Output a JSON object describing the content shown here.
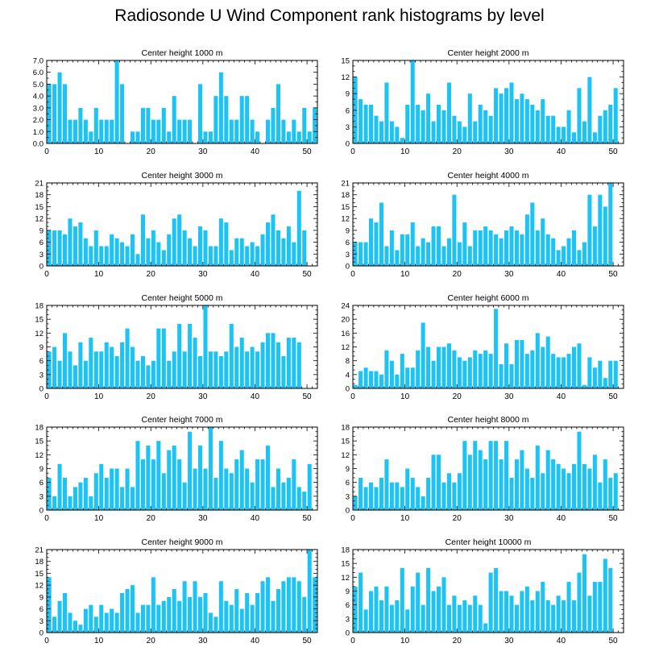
{
  "title": "Radiosonde U Wind Component rank histograms by level",
  "colors": {
    "bar": "#1cc3f5",
    "axis": "#000000"
  },
  "chart_data": [
    {
      "type": "bar",
      "title": "Center height 1000 m",
      "xlabel": "",
      "ylabel": "",
      "xlim": [
        0,
        52
      ],
      "ylim": [
        0,
        7
      ],
      "xticks": [
        0,
        10,
        20,
        30,
        40,
        50
      ],
      "yticks": [
        0,
        1,
        2,
        3,
        4,
        5,
        6,
        7
      ],
      "ytick_labels": [
        "0.0",
        "1.0",
        "2.0",
        "3.0",
        "4.0",
        "5.0",
        "6.0",
        "7.0"
      ],
      "values": [
        5,
        5,
        6,
        5,
        2,
        2,
        3,
        2,
        1,
        3,
        2,
        2,
        2,
        7,
        5,
        0,
        1,
        1,
        3,
        3,
        2,
        2,
        3,
        1,
        4,
        2,
        2,
        2,
        0,
        5,
        1,
        1,
        4,
        6,
        4,
        2,
        2,
        4,
        4,
        2,
        1,
        0,
        2,
        3,
        5,
        2,
        1,
        2,
        1,
        3,
        1,
        3
      ]
    },
    {
      "type": "bar",
      "title": "Center height 2000 m",
      "xlabel": "",
      "ylabel": "",
      "xlim": [
        0,
        52
      ],
      "ylim": [
        0,
        15
      ],
      "xticks": [
        0,
        10,
        20,
        30,
        40,
        50
      ],
      "yticks": [
        0,
        3,
        6,
        9,
        12,
        15
      ],
      "ytick_labels": [
        "0",
        "3",
        "6",
        "9",
        "12",
        "15"
      ],
      "values": [
        12,
        8,
        7,
        7,
        5,
        4,
        11,
        4,
        3,
        1,
        7,
        15,
        7,
        6,
        9,
        4,
        7,
        6,
        11,
        5,
        4,
        3,
        9,
        4,
        7,
        6,
        5,
        10,
        9,
        10,
        11,
        8,
        9,
        8,
        7,
        6,
        8,
        5,
        5,
        3,
        3,
        6,
        2,
        10,
        4,
        12,
        2,
        5,
        6,
        7,
        10,
        0
      ]
    },
    {
      "type": "bar",
      "title": "Center height 3000 m",
      "xlabel": "",
      "ylabel": "",
      "xlim": [
        0,
        52
      ],
      "ylim": [
        0,
        21
      ],
      "xticks": [
        0,
        10,
        20,
        30,
        40,
        50
      ],
      "yticks": [
        0,
        3,
        6,
        9,
        12,
        15,
        18,
        21
      ],
      "ytick_labels": [
        "0",
        "3",
        "6",
        "9",
        "12",
        "15",
        "18",
        "21"
      ],
      "values": [
        9,
        9,
        9,
        8,
        12,
        10,
        11,
        7,
        5,
        9,
        5,
        5,
        8,
        7,
        6,
        5,
        8,
        3,
        13,
        7,
        9,
        6,
        4,
        8,
        12,
        13,
        9,
        7,
        5,
        10,
        9,
        5,
        5,
        12,
        11,
        4,
        7,
        7,
        5,
        6,
        5,
        8,
        11,
        13,
        9,
        7,
        10,
        6,
        19,
        9,
        0,
        0
      ]
    },
    {
      "type": "bar",
      "title": "Center height 4000 m",
      "xlabel": "",
      "ylabel": "",
      "xlim": [
        0,
        52
      ],
      "ylim": [
        0,
        21
      ],
      "xticks": [
        0,
        10,
        20,
        30,
        40,
        50
      ],
      "yticks": [
        0,
        3,
        6,
        9,
        12,
        15,
        18,
        21
      ],
      "ytick_labels": [
        "0",
        "3",
        "6",
        "9",
        "12",
        "15",
        "18",
        "21"
      ],
      "values": [
        6,
        6,
        6,
        12,
        11,
        16,
        5,
        9,
        4,
        8,
        8,
        11,
        5,
        7,
        6,
        10,
        10,
        5,
        7,
        18,
        6,
        11,
        5,
        9,
        9,
        10,
        9,
        8,
        7,
        9,
        10,
        9,
        8,
        13,
        16,
        9,
        12,
        8,
        7,
        4,
        5,
        7,
        9,
        4,
        6,
        18,
        10,
        18,
        15,
        21,
        0,
        0
      ]
    },
    {
      "type": "bar",
      "title": "Center height 5000 m",
      "xlabel": "",
      "ylabel": "",
      "xlim": [
        0,
        52
      ],
      "ylim": [
        0,
        18
      ],
      "xticks": [
        0,
        10,
        20,
        30,
        40,
        50
      ],
      "yticks": [
        0,
        3,
        6,
        9,
        12,
        15,
        18
      ],
      "ytick_labels": [
        "0",
        "3",
        "6",
        "9",
        "12",
        "15",
        "18"
      ],
      "values": [
        8,
        9,
        6,
        12,
        8,
        5,
        10,
        6,
        11,
        8,
        8,
        10,
        9,
        7,
        10,
        13,
        9,
        6,
        7,
        5,
        6,
        13,
        13,
        6,
        8,
        14,
        8,
        14,
        11,
        7,
        18,
        8,
        8,
        7,
        8,
        14,
        9,
        11,
        8,
        9,
        8,
        10,
        12,
        12,
        10,
        7,
        11,
        11,
        10,
        0,
        0,
        0
      ]
    },
    {
      "type": "bar",
      "title": "Center height 6000 m",
      "xlabel": "",
      "ylabel": "",
      "xlim": [
        0,
        52
      ],
      "ylim": [
        0,
        24
      ],
      "xticks": [
        0,
        10,
        20,
        30,
        40,
        50
      ],
      "yticks": [
        0,
        4,
        8,
        12,
        16,
        20,
        24
      ],
      "ytick_labels": [
        "0",
        "4",
        "8",
        "12",
        "16",
        "20",
        "24"
      ],
      "values": [
        1,
        5,
        6,
        5,
        5,
        4,
        11,
        8,
        4,
        10,
        6,
        6,
        11,
        19,
        12,
        8,
        12,
        12,
        13,
        11,
        9,
        8,
        9,
        11,
        10,
        11,
        10,
        23,
        7,
        13,
        7,
        14,
        14,
        10,
        11,
        16,
        12,
        15,
        10,
        9,
        9,
        10,
        12,
        13,
        1,
        9,
        6,
        8,
        3,
        8,
        8,
        0
      ]
    },
    {
      "type": "bar",
      "title": "Center height 7000 m",
      "xlabel": "",
      "ylabel": "",
      "xlim": [
        0,
        52
      ],
      "ylim": [
        0,
        18
      ],
      "xticks": [
        0,
        10,
        20,
        30,
        40,
        50
      ],
      "yticks": [
        0,
        3,
        6,
        9,
        12,
        15,
        18
      ],
      "ytick_labels": [
        "0",
        "3",
        "6",
        "9",
        "12",
        "15",
        "18"
      ],
      "values": [
        7,
        3,
        10,
        7,
        3,
        5,
        6,
        7,
        3,
        8,
        10,
        7,
        9,
        9,
        5,
        9,
        5,
        15,
        11,
        14,
        11,
        15,
        8,
        13,
        14,
        11,
        6,
        17,
        9,
        14,
        9,
        18,
        7,
        15,
        9,
        8,
        11,
        13,
        9,
        6,
        11,
        11,
        14,
        5,
        9,
        6,
        7,
        11,
        5,
        4,
        10,
        0
      ]
    },
    {
      "type": "bar",
      "title": "Center height 8000 m",
      "xlabel": "",
      "ylabel": "",
      "xlim": [
        0,
        52
      ],
      "ylim": [
        0,
        18
      ],
      "xticks": [
        0,
        10,
        20,
        30,
        40,
        50
      ],
      "yticks": [
        0,
        3,
        6,
        9,
        12,
        15,
        18
      ],
      "ytick_labels": [
        "0",
        "3",
        "6",
        "9",
        "12",
        "15",
        "18"
      ],
      "values": [
        3,
        7,
        5,
        6,
        5,
        7,
        11,
        6,
        6,
        5,
        9,
        7,
        5,
        3,
        7,
        12,
        12,
        6,
        8,
        6,
        8,
        15,
        12,
        15,
        13,
        11,
        15,
        15,
        11,
        15,
        7,
        11,
        13,
        9,
        7,
        14,
        8,
        13,
        11,
        10,
        9,
        8,
        10,
        17,
        10,
        9,
        12,
        6,
        11,
        7,
        8,
        0
      ]
    },
    {
      "type": "bar",
      "title": "Center height 9000 m",
      "xlabel": "",
      "ylabel": "",
      "xlim": [
        0,
        52
      ],
      "ylim": [
        0,
        21
      ],
      "xticks": [
        0,
        10,
        20,
        30,
        40,
        50
      ],
      "yticks": [
        0,
        3,
        6,
        9,
        12,
        15,
        18,
        21
      ],
      "ytick_labels": [
        "0",
        "3",
        "6",
        "9",
        "12",
        "15",
        "18",
        "21"
      ],
      "values": [
        14,
        4,
        8,
        10,
        5,
        3,
        2,
        6,
        7,
        4,
        7,
        5,
        6,
        5,
        10,
        11,
        12,
        5,
        7,
        7,
        14,
        7,
        8,
        9,
        11,
        8,
        13,
        9,
        13,
        9,
        10,
        5,
        4,
        13,
        8,
        7,
        11,
        6,
        10,
        7,
        10,
        13,
        14,
        8,
        11,
        13,
        14,
        14,
        13,
        9,
        21,
        14
      ]
    },
    {
      "type": "bar",
      "title": "Center height 10000 m",
      "xlabel": "",
      "ylabel": "",
      "xlim": [
        0,
        52
      ],
      "ylim": [
        0,
        18
      ],
      "xticks": [
        0,
        10,
        20,
        30,
        40,
        50
      ],
      "yticks": [
        0,
        3,
        6,
        9,
        12,
        15,
        18
      ],
      "ytick_labels": [
        "0",
        "3",
        "6",
        "9",
        "12",
        "15",
        "18"
      ],
      "values": [
        10,
        13,
        5,
        9,
        10,
        7,
        10,
        6,
        7,
        14,
        5,
        10,
        13,
        6,
        14,
        9,
        10,
        12,
        6,
        8,
        6,
        7,
        6,
        8,
        6,
        2,
        13,
        14,
        9,
        9,
        8,
        6,
        9,
        10,
        7,
        9,
        11,
        7,
        6,
        8,
        7,
        11,
        7,
        13,
        17,
        8,
        11,
        11,
        16,
        14,
        0,
        0
      ]
    }
  ]
}
